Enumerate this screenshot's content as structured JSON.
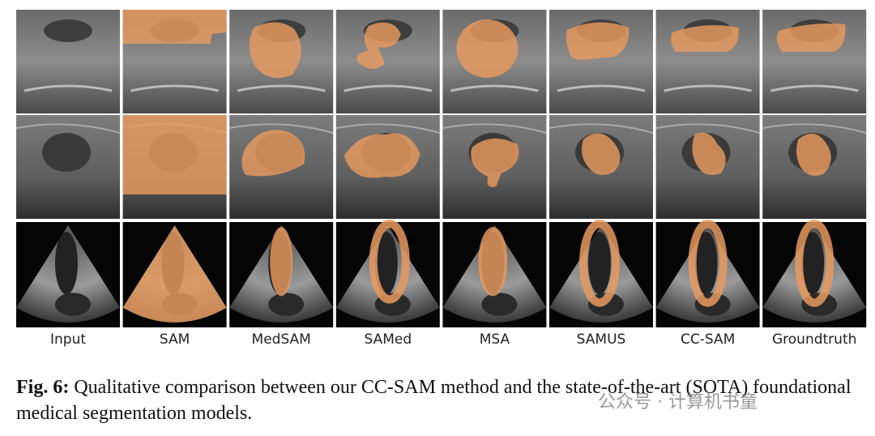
{
  "figure": {
    "columns": [
      "Input",
      "SAM",
      "MedSAM",
      "SAMed",
      "MSA",
      "SAMUS",
      "CC-SAM",
      "Groundtruth"
    ],
    "caption": {
      "label": "Fig. 6:",
      "text": "Qualitative comparison between our CC-SAM method and the state-of-the-art (SOTA) foundational medical segmentation models."
    },
    "watermark": "公众号 · 计算机书童"
  }
}
